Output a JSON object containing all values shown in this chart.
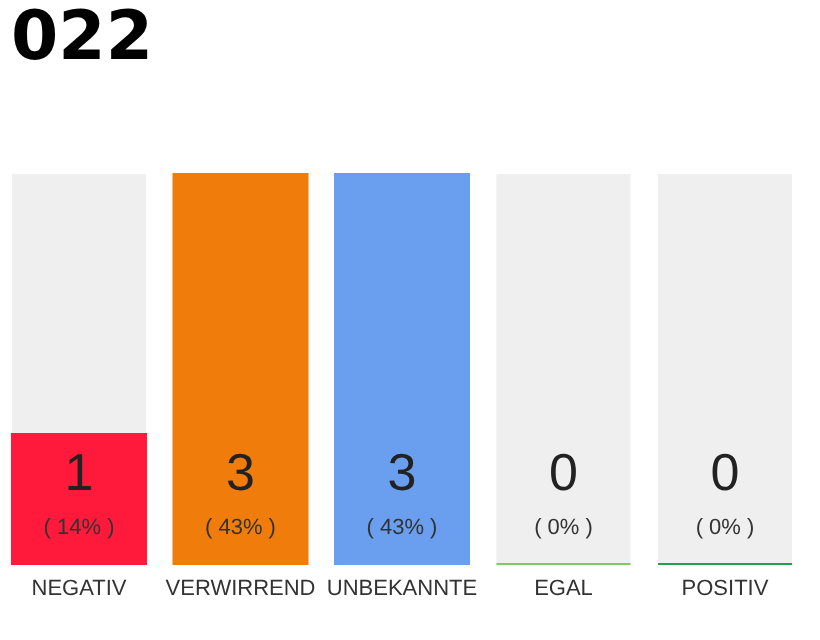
{
  "chart_data": {
    "type": "bar",
    "title": "022",
    "categories": [
      "NEGATIV",
      "VERWIRREND",
      "UNBEKANNTE",
      "EGAL",
      "POSITIV"
    ],
    "values": [
      1,
      3,
      3,
      0,
      0
    ],
    "colors": [
      "#ff1a3c",
      "#f07c0c",
      "#6a9eee",
      "#80c860",
      "#20a050"
    ],
    "data_labels": true,
    "annotations": [
      "( 14% )",
      "( 43% )",
      "( 43% )",
      "( 0% )",
      "( 0% )"
    ],
    "tick_labels": "x",
    "grid": false
  }
}
